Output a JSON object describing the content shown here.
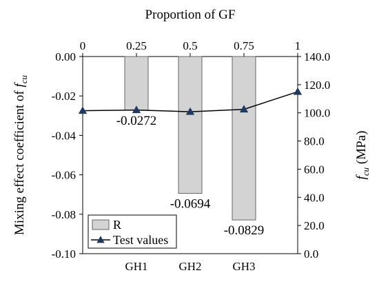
{
  "chart_data": {
    "type": "bar",
    "title": "Proportion of GF",
    "xlabel": "",
    "top_axis": {
      "label": "Proportion of GF",
      "ticks": [
        "0",
        "0.25",
        "0.5",
        "0.75",
        "1"
      ],
      "range": [
        0,
        1
      ]
    },
    "categories": [
      "GH1",
      "GH2",
      "GH3"
    ],
    "y_left": {
      "label_main": "Mixing effect coefficient of ",
      "label_var": "f",
      "label_sub": "cu",
      "range": [
        -0.1,
        0
      ],
      "ticks": [
        "0.00",
        "-0.02",
        "-0.04",
        "-0.06",
        "-0.08",
        "-0.10"
      ]
    },
    "y_right": {
      "label_var": "f",
      "label_sub": "cu",
      "label_unit": " (MPa)",
      "range": [
        0,
        140
      ],
      "ticks": [
        "140.0",
        "120.0",
        "100.0",
        "80.0",
        "60.0",
        "40.0",
        "20.0",
        "0.0"
      ]
    },
    "series": [
      {
        "name": "R",
        "type": "bar",
        "axis": "left",
        "color": "#d3d3d3",
        "x": [
          0.25,
          0.5,
          0.75
        ],
        "values": [
          -0.0272,
          -0.0694,
          -0.0829
        ],
        "labels": [
          "-0.0272",
          "-0.0694",
          "-0.0829"
        ]
      },
      {
        "name": "Test values",
        "type": "line",
        "axis": "right",
        "color": "#000000",
        "marker_color": "#1f3a5f",
        "x": [
          0,
          0.25,
          0.5,
          0.75,
          1
        ],
        "values": [
          101.5,
          102.0,
          100.8,
          102.5,
          115.0
        ]
      }
    ],
    "legend": {
      "placement": "bottom-left",
      "entries": [
        "R",
        "Test values"
      ]
    },
    "grid": false
  }
}
